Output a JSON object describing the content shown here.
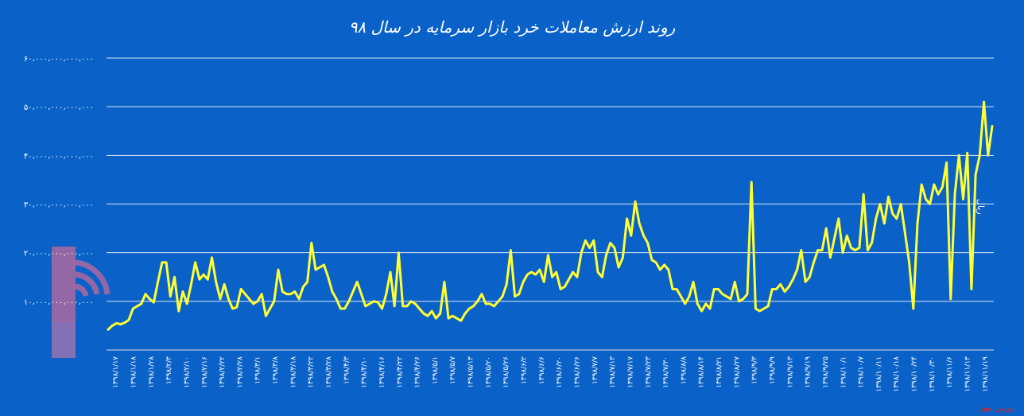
{
  "chart_data": {
    "type": "line",
    "title": "روند ارزش معاملات خرد بازار سرمایه در سال ۹۸",
    "ylabel": "ریال",
    "xlabel": "",
    "ylim": [
      0,
      60000000000000
    ],
    "ytick_values": [
      10000000000000,
      20000000000000,
      30000000000000,
      40000000000000,
      50000000000000,
      60000000000000
    ],
    "ytick_labels": [
      "۱۰،۰۰۰،۰۰۰،۰۰۰،۰۰۰",
      "۲۰،۰۰۰،۰۰۰،۰۰۰،۰۰۰",
      "۳۰،۰۰۰،۰۰۰،۰۰۰،۰۰۰",
      "۴۰،۰۰۰،۰۰۰،۰۰۰،۰۰۰",
      "۵۰،۰۰۰،۰۰۰،۰۰۰،۰۰۰",
      "۶۰،۰۰۰،۰۰۰،۰۰۰،۰۰۰"
    ],
    "xtick_labels": [
      "۱۳۹۸/۱/۱۷",
      "۱۳۹۸/۱/۱۸",
      "۱۳۹۸/۱/۲۸",
      "۱۳۹۸/۲/۳",
      "۱۳۹۸/۲/۱۰",
      "۱۳۹۸/۲/۱۶",
      "۱۳۹۸/۲/۲۲",
      "۱۳۹۸/۲/۲۸",
      "۱۳۹۸/۳/۱",
      "۱۳۹۸/۳/۸",
      "۱۳۹۸/۳/۱۸",
      "۱۳۹۸/۳/۲۲",
      "۱۳۹۸/۳/۲۸",
      "۱۳۹۸/۴/۳",
      "۱۳۹۸/۴/۱۰",
      "۱۳۹۸/۴/۱۶",
      "۱۳۹۸/۴/۲۲",
      "۱۳۹۸/۴/۲۶",
      "۱۳۹۸/۵/۱",
      "۱۳۹۸/۵/۷",
      "۱۳۹۸/۵/۱۳",
      "۱۳۹۸/۵/۲۰",
      "۱۳۹۸/۵/۲۶",
      "۱۳۹۸/۶/۲",
      "۱۳۹۸/۶/۶",
      "۱۳۹۸/۶/۲۰",
      "۱۳۹۸/۶/۲۶",
      "۱۳۹۸/۷/۷",
      "۱۳۹۸/۷/۱۳",
      "۱۳۹۸/۷/۱۷",
      "۱۳۹۸/۷/۲۳",
      "۱۳۹۸/۷/۳۰",
      "۱۳۹۸/۸/۸",
      "۱۳۹۸/۸/۱۴",
      "۱۳۹۸/۸/۲۱",
      "۱۳۹۸/۸/۲۷",
      "۱۳۹۸/۹/۳",
      "۱۳۹۸/۹/۹",
      "۱۳۹۸/۹/۱۳",
      "۱۳۹۸/۹/۱۹",
      "۱۳۹۸/۹/۲۵",
      "۱۳۹۸/۱۰/۱",
      "۱۳۹۸/۱۰/۷",
      "۱۳۹۸/۱۰/۱۱",
      "۱۳۹۸/۱۰/۱۸",
      "۱۳۹۸/۱۰/۲۴",
      "۱۳۹۸/۱۰/۳۰",
      "۱۳۹۸/۱۱/۶",
      "۱۳۹۸/۱۱/۱۳",
      "۱۳۹۸/۱۱/۱۹"
    ],
    "grid": true,
    "line_color": "#ffff33",
    "background": "#0a62c8",
    "values": [
      4.2,
      5.0,
      5.5,
      5.3,
      5.6,
      6.2,
      8.5,
      9.0,
      9.5,
      11.5,
      10.5,
      9.8,
      14.0,
      18.0,
      18.0,
      11.0,
      15.0,
      8.0,
      12.0,
      9.5,
      13.5,
      18.0,
      14.5,
      15.5,
      14.5,
      19.0,
      14.0,
      10.5,
      13.5,
      10.5,
      8.5,
      8.8,
      12.5,
      11.5,
      10.5,
      9.5,
      10.0,
      11.5,
      7.0,
      8.5,
      10.0,
      16.5,
      12.0,
      11.5,
      11.5,
      12.0,
      10.5,
      13.0,
      14.0,
      22.0,
      16.5,
      17.0,
      17.5,
      15.0,
      12.0,
      10.5,
      8.5,
      8.5,
      10.0,
      12.0,
      14.0,
      11.5,
      9.0,
      9.5,
      10.0,
      9.8,
      8.5,
      11.5,
      16.0,
      9.0,
      20.0,
      9.0,
      9.0,
      10.0,
      9.5,
      8.5,
      7.5,
      7.0,
      8.0,
      6.5,
      7.5,
      14.0,
      6.5,
      7.0,
      6.5,
      6.0,
      7.5,
      8.5,
      9.0,
      10.0,
      11.5,
      9.5,
      9.5,
      9.0,
      10.0,
      11.0,
      13.5,
      20.5,
      11.0,
      11.5,
      14.0,
      15.5,
      16.0,
      15.5,
      16.5,
      14.0,
      19.5,
      15.0,
      16.0,
      12.5,
      13.0,
      14.5,
      16.0,
      15.0,
      20.0,
      22.5,
      21.0,
      22.5,
      16.0,
      15.0,
      19.5,
      22.0,
      21.0,
      17.0,
      19.0,
      27.0,
      23.5,
      30.5,
      26.0,
      23.5,
      22.0,
      18.5,
      18.0,
      16.5,
      17.5,
      16.5,
      12.5,
      12.5,
      11.0,
      9.5,
      11.0,
      14.0,
      9.5,
      8.0,
      9.5,
      8.5,
      12.5,
      12.5,
      11.5,
      11.0,
      10.5,
      14.0,
      10.0,
      10.5,
      11.5,
      34.5,
      8.5,
      8.0,
      8.5,
      9.0,
      12.5,
      12.5,
      13.5,
      12.0,
      13.0,
      14.5,
      16.5,
      20.5,
      14.0,
      15.0,
      18.0,
      20.5,
      20.5,
      25.0,
      19.0,
      23.0,
      27.0,
      20.0,
      23.5,
      21.0,
      20.5,
      21.0,
      32.0,
      20.5,
      22.0,
      27.0,
      30.0,
      26.0,
      31.5,
      28.0,
      27.0,
      30.0,
      24.0,
      18.0,
      8.5,
      26.0,
      34.0,
      31.0,
      30.0,
      34.0,
      32.0,
      33.5,
      38.5,
      10.5,
      32.0,
      40.0,
      31.0,
      40.5,
      12.5,
      36.0,
      40.0,
      51.0,
      40.0,
      46.0
    ]
  },
  "ui": {
    "footer_text": "بورس نیوز"
  }
}
